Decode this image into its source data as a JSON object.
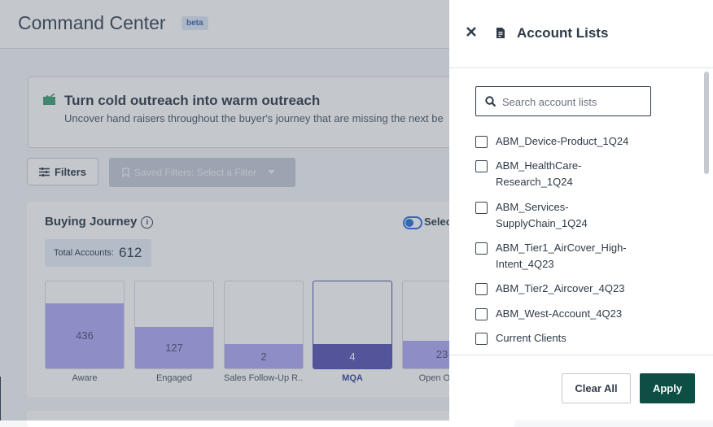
{
  "header": {
    "title": "Command Center",
    "badge": "beta"
  },
  "banner": {
    "title": "Turn cold outreach into warm outreach",
    "subtitle": "Uncover hand raisers throughout the buyer's journey that are missing the next be"
  },
  "toolbar": {
    "filters_label": "Filters",
    "saved_filters_label": "Saved Filters: Select a Filter"
  },
  "journey": {
    "title": "Buying Journey",
    "select_label": "Selec",
    "total_label": "Total Accounts:",
    "total_value": "612",
    "stages": [
      {
        "label": "Aware",
        "value": "436",
        "fill_percent": 75,
        "selected": false
      },
      {
        "label": "Engaged",
        "value": "127",
        "fill_percent": 48,
        "selected": false
      },
      {
        "label": "Sales Follow-Up R...",
        "value": "2",
        "fill_percent": 28,
        "selected": false
      },
      {
        "label": "MQA",
        "value": "4",
        "fill_percent": 28,
        "selected": true
      },
      {
        "label": "Open Oppo",
        "value": "23",
        "fill_percent": 32,
        "selected": false
      }
    ]
  },
  "drawer": {
    "title": "Account Lists",
    "search_placeholder": "Search account lists",
    "items": [
      {
        "label": "ABM_Device-Product_1Q24"
      },
      {
        "label": "ABM_HealthCare-Research_1Q24"
      },
      {
        "label": "ABM_Services-SupplyChain_1Q24"
      },
      {
        "label": "ABM_Tier1_AirCover_High-Intent_4Q23"
      },
      {
        "label": "ABM_Tier2_Aircover_4Q23"
      },
      {
        "label": "ABM_West-Account_4Q23"
      },
      {
        "label": "Current Clients"
      }
    ],
    "clear_label": "Clear All",
    "apply_label": "Apply"
  }
}
